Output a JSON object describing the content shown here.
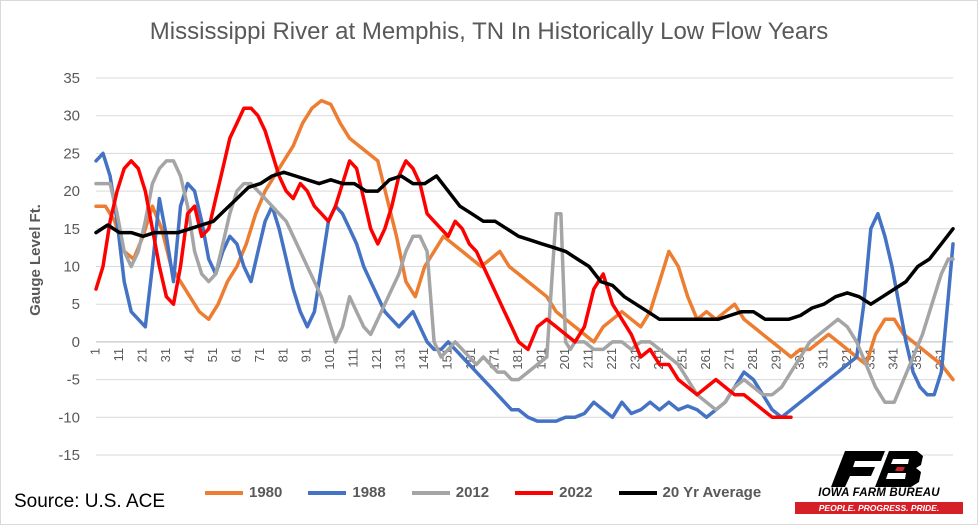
{
  "title": "Mississippi River at Memphis, TN In Historically Low Flow Years",
  "source": "Source: U.S. ACE",
  "logo": {
    "name": "IOWA FARM BUREAU",
    "tagline": "PEOPLE. PROGRESS. PRIDE.",
    "red": "#d62027"
  },
  "chart_data": {
    "type": "line",
    "title": "Mississippi River at Memphis, TN In Historically Low Flow Years",
    "xlabel": "",
    "ylabel": "Gauge Level Ft.",
    "xlim": [
      1,
      366
    ],
    "ylim": [
      -15,
      35
    ],
    "yticks": [
      -15,
      -10,
      -5,
      0,
      5,
      10,
      15,
      20,
      25,
      30,
      35
    ],
    "xticks": [
      1,
      11,
      21,
      31,
      41,
      51,
      61,
      71,
      81,
      91,
      101,
      111,
      121,
      131,
      141,
      151,
      161,
      171,
      181,
      191,
      201,
      211,
      221,
      231,
      241,
      251,
      261,
      271,
      281,
      291,
      301,
      311,
      321,
      331,
      341,
      351,
      361
    ],
    "grid": true,
    "legend_position": "bottom",
    "series": [
      {
        "name": "1980",
        "color": "#ed7d31",
        "x": [
          1,
          5,
          9,
          13,
          17,
          21,
          25,
          29,
          33,
          37,
          41,
          45,
          49,
          53,
          57,
          61,
          65,
          69,
          73,
          77,
          81,
          85,
          89,
          93,
          97,
          101,
          105,
          109,
          113,
          117,
          121,
          125,
          129,
          133,
          137,
          141,
          145,
          149,
          153,
          157,
          161,
          165,
          169,
          173,
          177,
          181,
          185,
          189,
          193,
          197,
          201,
          205,
          209,
          213,
          217,
          221,
          225,
          229,
          233,
          237,
          241,
          245,
          249,
          253,
          257,
          261,
          265,
          269,
          273,
          277,
          281,
          285,
          289,
          293,
          297,
          301,
          305,
          309,
          313,
          317,
          321,
          325,
          329,
          333,
          337,
          341,
          345,
          349,
          353,
          357,
          361,
          366
        ],
        "y": [
          18,
          18,
          16,
          12,
          11,
          14,
          18,
          15,
          10,
          8,
          6,
          4,
          3,
          5,
          8,
          10,
          13,
          17,
          20,
          22,
          24,
          26,
          29,
          31,
          32,
          31.5,
          29,
          27,
          26,
          25,
          24,
          19,
          14,
          8,
          6,
          10,
          12,
          14,
          13,
          12,
          11,
          10,
          11,
          12,
          10,
          9,
          8,
          7,
          6,
          4,
          3,
          2,
          1,
          0,
          2,
          3,
          4,
          3,
          2,
          4,
          8,
          12,
          10,
          6,
          3,
          4,
          3,
          4,
          5,
          3,
          2,
          1,
          0,
          -1,
          -2,
          -1,
          -1,
          0,
          1,
          0,
          -1,
          -2,
          -3,
          1,
          3,
          3,
          1,
          0,
          -1,
          -2,
          -3,
          -5
        ]
      },
      {
        "name": "1988",
        "color": "#4472c4",
        "x": [
          1,
          4,
          7,
          10,
          13,
          16,
          19,
          22,
          25,
          28,
          31,
          34,
          37,
          40,
          43,
          46,
          49,
          52,
          55,
          58,
          61,
          64,
          67,
          70,
          73,
          76,
          79,
          82,
          85,
          88,
          91,
          94,
          97,
          100,
          103,
          106,
          109,
          112,
          115,
          118,
          121,
          124,
          127,
          130,
          133,
          136,
          139,
          142,
          145,
          148,
          151,
          154,
          157,
          160,
          163,
          166,
          169,
          172,
          175,
          178,
          181,
          185,
          189,
          193,
          197,
          201,
          205,
          209,
          213,
          217,
          221,
          225,
          229,
          233,
          237,
          241,
          245,
          249,
          253,
          257,
          261,
          265,
          269,
          273,
          277,
          281,
          285,
          289,
          293,
          297,
          301,
          305,
          309,
          313,
          317,
          321,
          325,
          328,
          331,
          334,
          337,
          340,
          343,
          346,
          349,
          352,
          355,
          358,
          361,
          364,
          366
        ],
        "y": [
          24,
          25,
          22,
          16,
          8,
          4,
          3,
          2,
          10,
          19,
          14,
          8,
          18,
          21,
          20,
          16,
          11,
          9,
          12,
          14,
          13,
          10,
          8,
          12,
          16,
          18,
          15,
          11,
          7,
          4,
          2,
          4,
          10,
          16,
          18,
          17,
          15,
          13,
          10,
          8,
          6,
          4,
          3,
          2,
          3,
          4,
          2,
          0,
          -1,
          -1,
          0,
          -1,
          -2,
          -3,
          -4,
          -5,
          -6,
          -7,
          -8,
          -9,
          -9,
          -10,
          -10.5,
          -10.5,
          -10.5,
          -10,
          -10,
          -9.5,
          -8,
          -9,
          -10,
          -8,
          -9.5,
          -9,
          -8,
          -9,
          -8,
          -9,
          -8.5,
          -9,
          -10,
          -9,
          -8,
          -6,
          -4,
          -5,
          -7,
          -9,
          -10,
          -9,
          -8,
          -7,
          -6,
          -5,
          -4,
          -3,
          -2,
          5,
          15,
          17,
          14,
          10,
          5,
          0,
          -4,
          -6,
          -7,
          -7,
          -4,
          6,
          13
        ]
      },
      {
        "name": "2012",
        "color": "#a5a5a5",
        "x": [
          1,
          4,
          7,
          10,
          13,
          16,
          19,
          22,
          25,
          28,
          31,
          34,
          37,
          40,
          43,
          46,
          49,
          52,
          55,
          58,
          61,
          64,
          67,
          70,
          73,
          76,
          79,
          82,
          85,
          88,
          91,
          94,
          97,
          100,
          103,
          106,
          109,
          112,
          115,
          118,
          121,
          124,
          127,
          130,
          133,
          136,
          139,
          142,
          145,
          148,
          151,
          154,
          157,
          160,
          163,
          166,
          169,
          172,
          175,
          178,
          181,
          185,
          189,
          193,
          197,
          199,
          201,
          203,
          205,
          209,
          213,
          217,
          221,
          225,
          229,
          233,
          237,
          241,
          245,
          249,
          253,
          257,
          261,
          265,
          269,
          273,
          277,
          281,
          285,
          289,
          293,
          297,
          301,
          305,
          309,
          313,
          317,
          321,
          325,
          329,
          333,
          337,
          341,
          345,
          349,
          353,
          357,
          361,
          364,
          366
        ],
        "y": [
          21,
          21,
          21,
          17,
          12,
          10,
          12,
          16,
          21,
          23,
          24,
          24,
          22,
          18,
          12,
          9,
          8,
          9,
          13,
          17,
          20,
          21,
          21,
          20,
          19,
          18,
          17,
          16,
          14,
          12,
          10,
          8,
          6,
          3,
          0,
          2,
          6,
          4,
          2,
          1,
          3,
          5,
          7,
          9,
          12,
          14,
          14,
          12,
          0,
          -2,
          -1,
          0,
          -1,
          -2,
          -3,
          -2,
          -3,
          -4,
          -4,
          -5,
          -5,
          -4,
          -3,
          -2,
          17,
          17,
          0,
          -1,
          0,
          0,
          -1,
          -1,
          0,
          0,
          -1,
          0,
          0,
          -1,
          -2,
          -3,
          -5,
          -7,
          -8,
          -9,
          -8,
          -6,
          -5,
          -6,
          -7,
          -7,
          -6,
          -4,
          -2,
          0,
          1,
          2,
          3,
          2,
          0,
          -3,
          -6,
          -8,
          -8,
          -5,
          -2,
          1,
          5,
          9,
          11,
          11
        ]
      },
      {
        "name": "2022",
        "color": "#ff0000",
        "x": [
          1,
          4,
          7,
          10,
          13,
          16,
          19,
          22,
          25,
          28,
          31,
          34,
          37,
          40,
          43,
          46,
          49,
          52,
          55,
          58,
          61,
          64,
          67,
          70,
          73,
          76,
          79,
          82,
          85,
          88,
          91,
          94,
          97,
          100,
          103,
          106,
          109,
          112,
          115,
          118,
          121,
          124,
          127,
          130,
          133,
          136,
          139,
          142,
          145,
          148,
          151,
          154,
          157,
          160,
          163,
          166,
          169,
          172,
          175,
          178,
          181,
          185,
          189,
          193,
          197,
          201,
          205,
          209,
          213,
          217,
          221,
          225,
          229,
          233,
          237,
          241,
          245,
          249,
          253,
          257,
          261,
          265,
          269,
          273,
          277,
          281,
          285,
          289,
          293,
          297
        ],
        "y": [
          7,
          10,
          16,
          20,
          23,
          24,
          23,
          20,
          15,
          10,
          6,
          5,
          10,
          17,
          18,
          14,
          15,
          19,
          23,
          27,
          29,
          31,
          31,
          30,
          28,
          25,
          22,
          20,
          19,
          21,
          20,
          18,
          17,
          16,
          18,
          21,
          24,
          23,
          19,
          15,
          13,
          15,
          18,
          22,
          24,
          23,
          21,
          17,
          16,
          15,
          14,
          16,
          15,
          13,
          12,
          10,
          8,
          6,
          4,
          2,
          0,
          -1,
          2,
          3,
          2,
          1,
          0,
          2,
          7,
          9,
          5,
          3,
          1,
          -2,
          -1,
          -3,
          -3,
          -5,
          -6,
          -7,
          -6,
          -5,
          -6,
          -7,
          -7,
          -8,
          -9,
          -10,
          -10,
          -10
        ]
      },
      {
        "name": "20 Yr Average",
        "color": "#000000",
        "x": [
          1,
          6,
          11,
          16,
          21,
          26,
          31,
          36,
          41,
          46,
          51,
          56,
          61,
          66,
          71,
          76,
          81,
          86,
          91,
          96,
          101,
          106,
          111,
          116,
          121,
          126,
          131,
          136,
          141,
          146,
          151,
          156,
          161,
          166,
          171,
          176,
          181,
          186,
          191,
          196,
          201,
          206,
          211,
          216,
          221,
          226,
          231,
          236,
          241,
          246,
          251,
          256,
          261,
          266,
          271,
          276,
          281,
          286,
          291,
          296,
          301,
          306,
          311,
          316,
          321,
          326,
          331,
          336,
          341,
          346,
          351,
          356,
          361,
          366
        ],
        "y": [
          14.5,
          15.5,
          14.5,
          14.5,
          14,
          14.5,
          14.5,
          14.5,
          15,
          15.5,
          16,
          17.5,
          19,
          20.5,
          21,
          22,
          22.5,
          22,
          21.5,
          21,
          21.5,
          21,
          21,
          20,
          20,
          21.5,
          22,
          21,
          21,
          22,
          20,
          18,
          17,
          16,
          16,
          15,
          14,
          13.5,
          13,
          12.5,
          12,
          11,
          10,
          8,
          7.5,
          6,
          5,
          4,
          3,
          3,
          3,
          3,
          3,
          3,
          3.5,
          4,
          4,
          3,
          3,
          3,
          3.5,
          4.5,
          5,
          6,
          6.5,
          6,
          5,
          6,
          7,
          8,
          10,
          11,
          13,
          15
        ]
      }
    ]
  }
}
